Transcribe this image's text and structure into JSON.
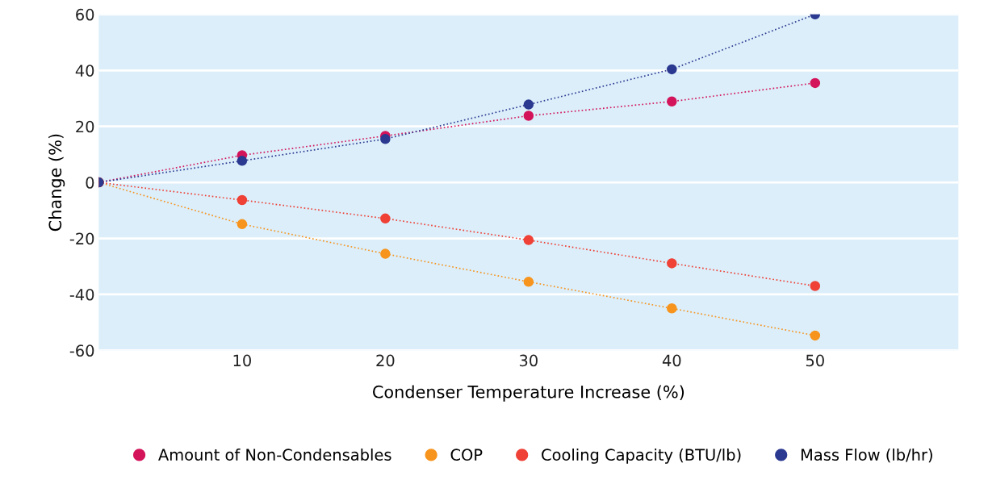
{
  "chart_data": {
    "type": "line",
    "xlabel": "Condenser Temperature Increase (%)",
    "ylabel": "Change (%)",
    "x": [
      0,
      10,
      20,
      30,
      40,
      50
    ],
    "series": [
      {
        "name": "Amount of Non-Condensables",
        "color": "#d4145a",
        "values": [
          0,
          9.7,
          16.6,
          23.8,
          28.9,
          35.5
        ]
      },
      {
        "name": "COP",
        "color": "#f7941d",
        "values": [
          0,
          -14.9,
          -25.5,
          -35.5,
          -45,
          -54.7
        ]
      },
      {
        "name": "Cooling Capacity (BTU/lb)",
        "color": "#ef4136",
        "values": [
          0,
          -6.3,
          -12.9,
          -20.6,
          -28.9,
          -37
        ]
      },
      {
        "name": "Mass Flow (lb/hr)",
        "color": "#2b3990",
        "values": [
          0,
          7.7,
          15.5,
          27.8,
          40.4,
          60
        ]
      }
    ],
    "xlim": [
      0,
      60
    ],
    "xticks": [
      10,
      20,
      30,
      40,
      50
    ],
    "ylim": [
      -60,
      60
    ],
    "yticks": [
      -60,
      -40,
      -20,
      0,
      20,
      40,
      60
    ],
    "grid": "y",
    "legend": "bottom",
    "marker": "circle",
    "line_style": "dotted"
  }
}
